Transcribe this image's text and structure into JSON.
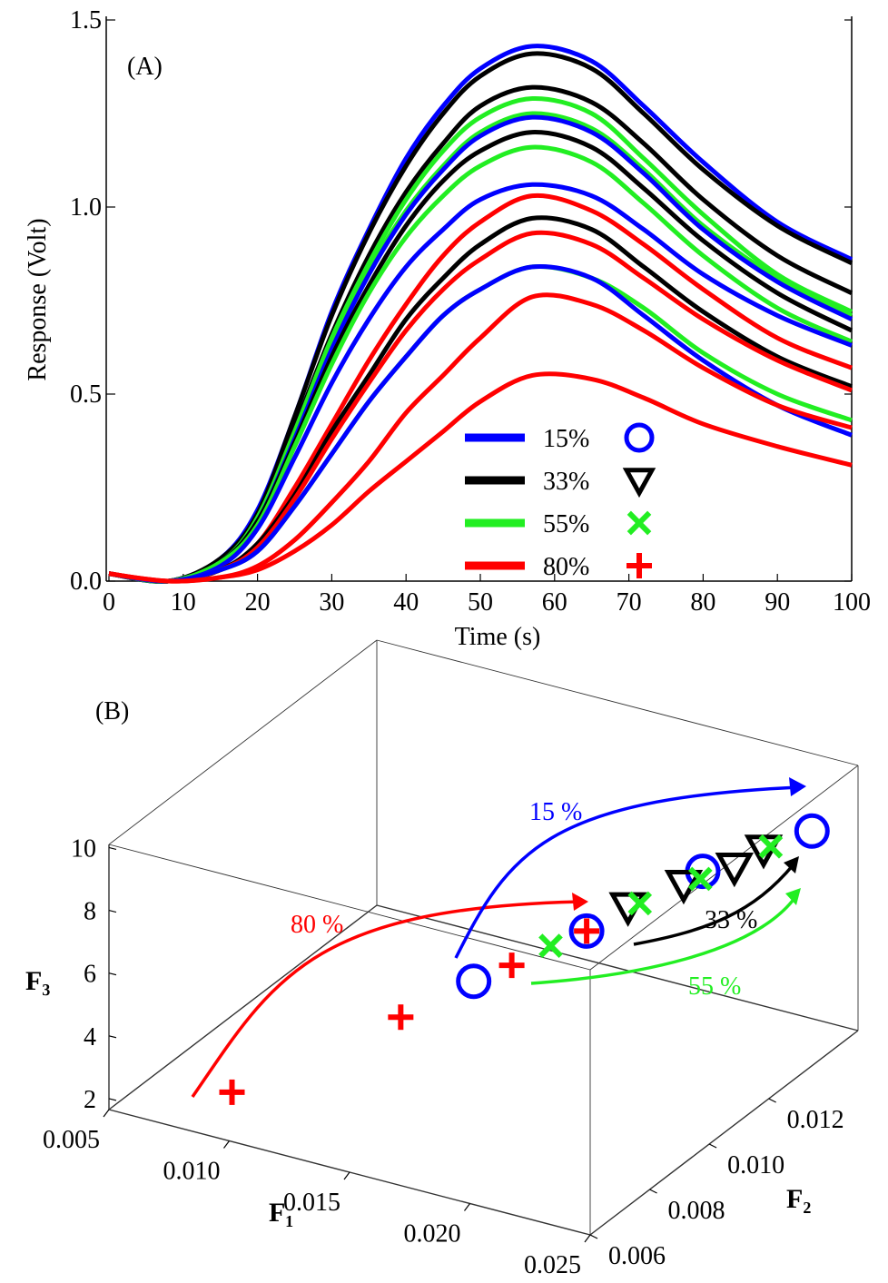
{
  "chart_data": [
    {
      "type": "line",
      "panel_label": "(A)",
      "xlabel": "Time (s)",
      "ylabel": "Response (Volt)",
      "xlim": [
        0,
        100
      ],
      "ylim": [
        0,
        1.5
      ],
      "xticks": [
        "0",
        "10",
        "20",
        "30",
        "40",
        "50",
        "60",
        "70",
        "80",
        "90",
        "100"
      ],
      "yticks": [
        "0.0",
        "0.5",
        "1.0",
        "1.5"
      ],
      "grid": false,
      "legend_placement": "bottom-right",
      "legend": [
        {
          "label": "15%",
          "color": "#0000ff",
          "marker": "circle"
        },
        {
          "label": "33%",
          "color": "#000000",
          "marker": "triangle-down"
        },
        {
          "label": "55%",
          "color": "#22ee22",
          "marker": "x"
        },
        {
          "label": "80%",
          "color": "#ff0000",
          "marker": "plus"
        }
      ],
      "x": [
        0,
        8,
        15,
        20,
        25,
        30,
        35,
        40,
        45,
        50,
        57,
        65,
        72,
        80,
        90,
        100
      ],
      "series": [
        {
          "group": "15%",
          "color": "#0000ff",
          "values": [
            0.02,
            0,
            0.06,
            0.19,
            0.44,
            0.72,
            0.94,
            1.13,
            1.27,
            1.37,
            1.43,
            1.39,
            1.27,
            1.12,
            0.96,
            0.86
          ]
        },
        {
          "group": "33%",
          "color": "#000000",
          "values": [
            0.02,
            0,
            0.06,
            0.18,
            0.44,
            0.71,
            0.93,
            1.11,
            1.25,
            1.35,
            1.41,
            1.37,
            1.25,
            1.1,
            0.95,
            0.85
          ]
        },
        {
          "group": "33%",
          "color": "#000000",
          "values": [
            0.02,
            0,
            0.05,
            0.17,
            0.41,
            0.66,
            0.87,
            1.04,
            1.17,
            1.27,
            1.32,
            1.28,
            1.17,
            1.02,
            0.87,
            0.77
          ]
        },
        {
          "group": "55%",
          "color": "#22ee22",
          "values": [
            0.02,
            0,
            0.05,
            0.17,
            0.4,
            0.65,
            0.85,
            1.02,
            1.15,
            1.24,
            1.29,
            1.25,
            1.13,
            0.98,
            0.82,
            0.72
          ]
        },
        {
          "group": "55%",
          "color": "#22ee22",
          "values": [
            0.02,
            0,
            0.05,
            0.16,
            0.39,
            0.63,
            0.83,
            0.99,
            1.11,
            1.2,
            1.25,
            1.21,
            1.1,
            0.95,
            0.81,
            0.71
          ]
        },
        {
          "group": "15%",
          "color": "#0000ff",
          "values": [
            0.02,
            0,
            0.05,
            0.16,
            0.38,
            0.62,
            0.82,
            0.98,
            1.1,
            1.19,
            1.24,
            1.2,
            1.09,
            0.94,
            0.8,
            0.7
          ]
        },
        {
          "group": "33%",
          "color": "#000000",
          "values": [
            0.02,
            0,
            0.05,
            0.16,
            0.37,
            0.6,
            0.79,
            0.95,
            1.07,
            1.15,
            1.2,
            1.16,
            1.05,
            0.91,
            0.77,
            0.67
          ]
        },
        {
          "group": "55%",
          "color": "#22ee22",
          "values": [
            0.02,
            0,
            0.05,
            0.15,
            0.36,
            0.58,
            0.77,
            0.92,
            1.03,
            1.11,
            1.16,
            1.12,
            1.01,
            0.87,
            0.73,
            0.64
          ]
        },
        {
          "group": "15%",
          "color": "#0000ff",
          "values": [
            0.02,
            0,
            0.04,
            0.14,
            0.33,
            0.53,
            0.7,
            0.84,
            0.94,
            1.02,
            1.06,
            1.03,
            0.94,
            0.82,
            0.71,
            0.63
          ]
        },
        {
          "group": "80%",
          "color": "#ff0000",
          "values": [
            0.02,
            0,
            0.03,
            0.1,
            0.25,
            0.42,
            0.59,
            0.74,
            0.87,
            0.96,
            1.03,
            0.99,
            0.9,
            0.78,
            0.65,
            0.57
          ]
        },
        {
          "group": "33%",
          "color": "#000000",
          "values": [
            0.02,
            0,
            0.03,
            0.1,
            0.23,
            0.4,
            0.55,
            0.7,
            0.81,
            0.9,
            0.97,
            0.94,
            0.84,
            0.72,
            0.6,
            0.52
          ]
        },
        {
          "group": "80%",
          "color": "#ff0000",
          "values": [
            0.02,
            0,
            0.03,
            0.09,
            0.22,
            0.38,
            0.53,
            0.67,
            0.78,
            0.86,
            0.93,
            0.9,
            0.81,
            0.7,
            0.59,
            0.51
          ]
        },
        {
          "group": "55%",
          "color": "#22ee22",
          "values": [
            0.02,
            0,
            0.03,
            0.08,
            0.2,
            0.34,
            0.48,
            0.6,
            0.71,
            0.78,
            0.84,
            0.81,
            0.73,
            0.61,
            0.5,
            0.43
          ]
        },
        {
          "group": "15%",
          "color": "#0000ff",
          "values": [
            0.02,
            0,
            0.03,
            0.08,
            0.2,
            0.34,
            0.48,
            0.6,
            0.71,
            0.78,
            0.84,
            0.81,
            0.71,
            0.59,
            0.47,
            0.39
          ]
        },
        {
          "group": "80%",
          "color": "#ff0000",
          "values": [
            0.02,
            0,
            0.01,
            0.04,
            0.11,
            0.21,
            0.32,
            0.45,
            0.55,
            0.65,
            0.76,
            0.74,
            0.67,
            0.57,
            0.47,
            0.41
          ]
        },
        {
          "group": "80%",
          "color": "#ff0000",
          "values": [
            0.02,
            0,
            0.01,
            0.03,
            0.08,
            0.15,
            0.24,
            0.32,
            0.4,
            0.48,
            0.55,
            0.54,
            0.49,
            0.42,
            0.36,
            0.31
          ]
        }
      ]
    },
    {
      "type": "scatter",
      "panel_label": "(B)",
      "projection": "3d",
      "xlabel": "F₁",
      "ylabel": "F₂",
      "zlabel": "F₃",
      "xlim": [
        0.005,
        0.025
      ],
      "ylim": [
        0.006,
        0.015
      ],
      "zlim": [
        1.65,
        10.1
      ],
      "xticks": [
        "0.005",
        "0.010",
        "0.015",
        "0.020",
        "0.025"
      ],
      "yticks": [
        "0.006",
        "0.008",
        "0.010",
        "0.012"
      ],
      "zticks": [
        "2",
        "4",
        "6",
        "8",
        "10"
      ],
      "series": [
        {
          "group": "80%",
          "color": "#ff0000",
          "marker": "plus",
          "points": [
            [
              0.009,
              0.0069,
              2.35
            ],
            [
              0.0149,
              0.0078,
              5.27
            ],
            [
              0.0184,
              0.0087,
              6.97
            ],
            [
              0.0204,
              0.0096,
              7.81
            ]
          ]
        },
        {
          "group": "15%",
          "color": "#0000ff",
          "marker": "circle",
          "points": [
            [
              0.0162,
              0.0092,
              5.66
            ],
            [
              0.0204,
              0.0096,
              7.81
            ],
            [
              0.023,
              0.0114,
              8.93
            ],
            [
              0.0242,
              0.0141,
              8.5
            ]
          ]
        },
        {
          "group": "33%",
          "color": "#000000",
          "marker": "triangle-down",
          "points": [
            [
              0.0215,
              0.0101,
              8.44
            ],
            [
              0.0227,
              0.011,
              8.74
            ],
            [
              0.0232,
              0.0123,
              8.45
            ],
            [
              0.0233,
              0.0132,
              8.39
            ]
          ]
        },
        {
          "group": "55%",
          "color": "#22ee22",
          "marker": "x",
          "points": [
            [
              0.0194,
              0.0092,
              7.43
            ],
            [
              0.0215,
              0.0105,
              8.26
            ],
            [
              0.0229,
              0.0114,
              8.67
            ],
            [
              0.0236,
              0.0132,
              8.54
            ]
          ]
        }
      ],
      "annotations": [
        {
          "text": "15 %",
          "color": "#0000ff"
        },
        {
          "text": "80 %",
          "color": "#ff0000"
        },
        {
          "text": "33 %",
          "color": "#000000"
        },
        {
          "text": "55 %",
          "color": "#22ee22"
        }
      ]
    }
  ]
}
